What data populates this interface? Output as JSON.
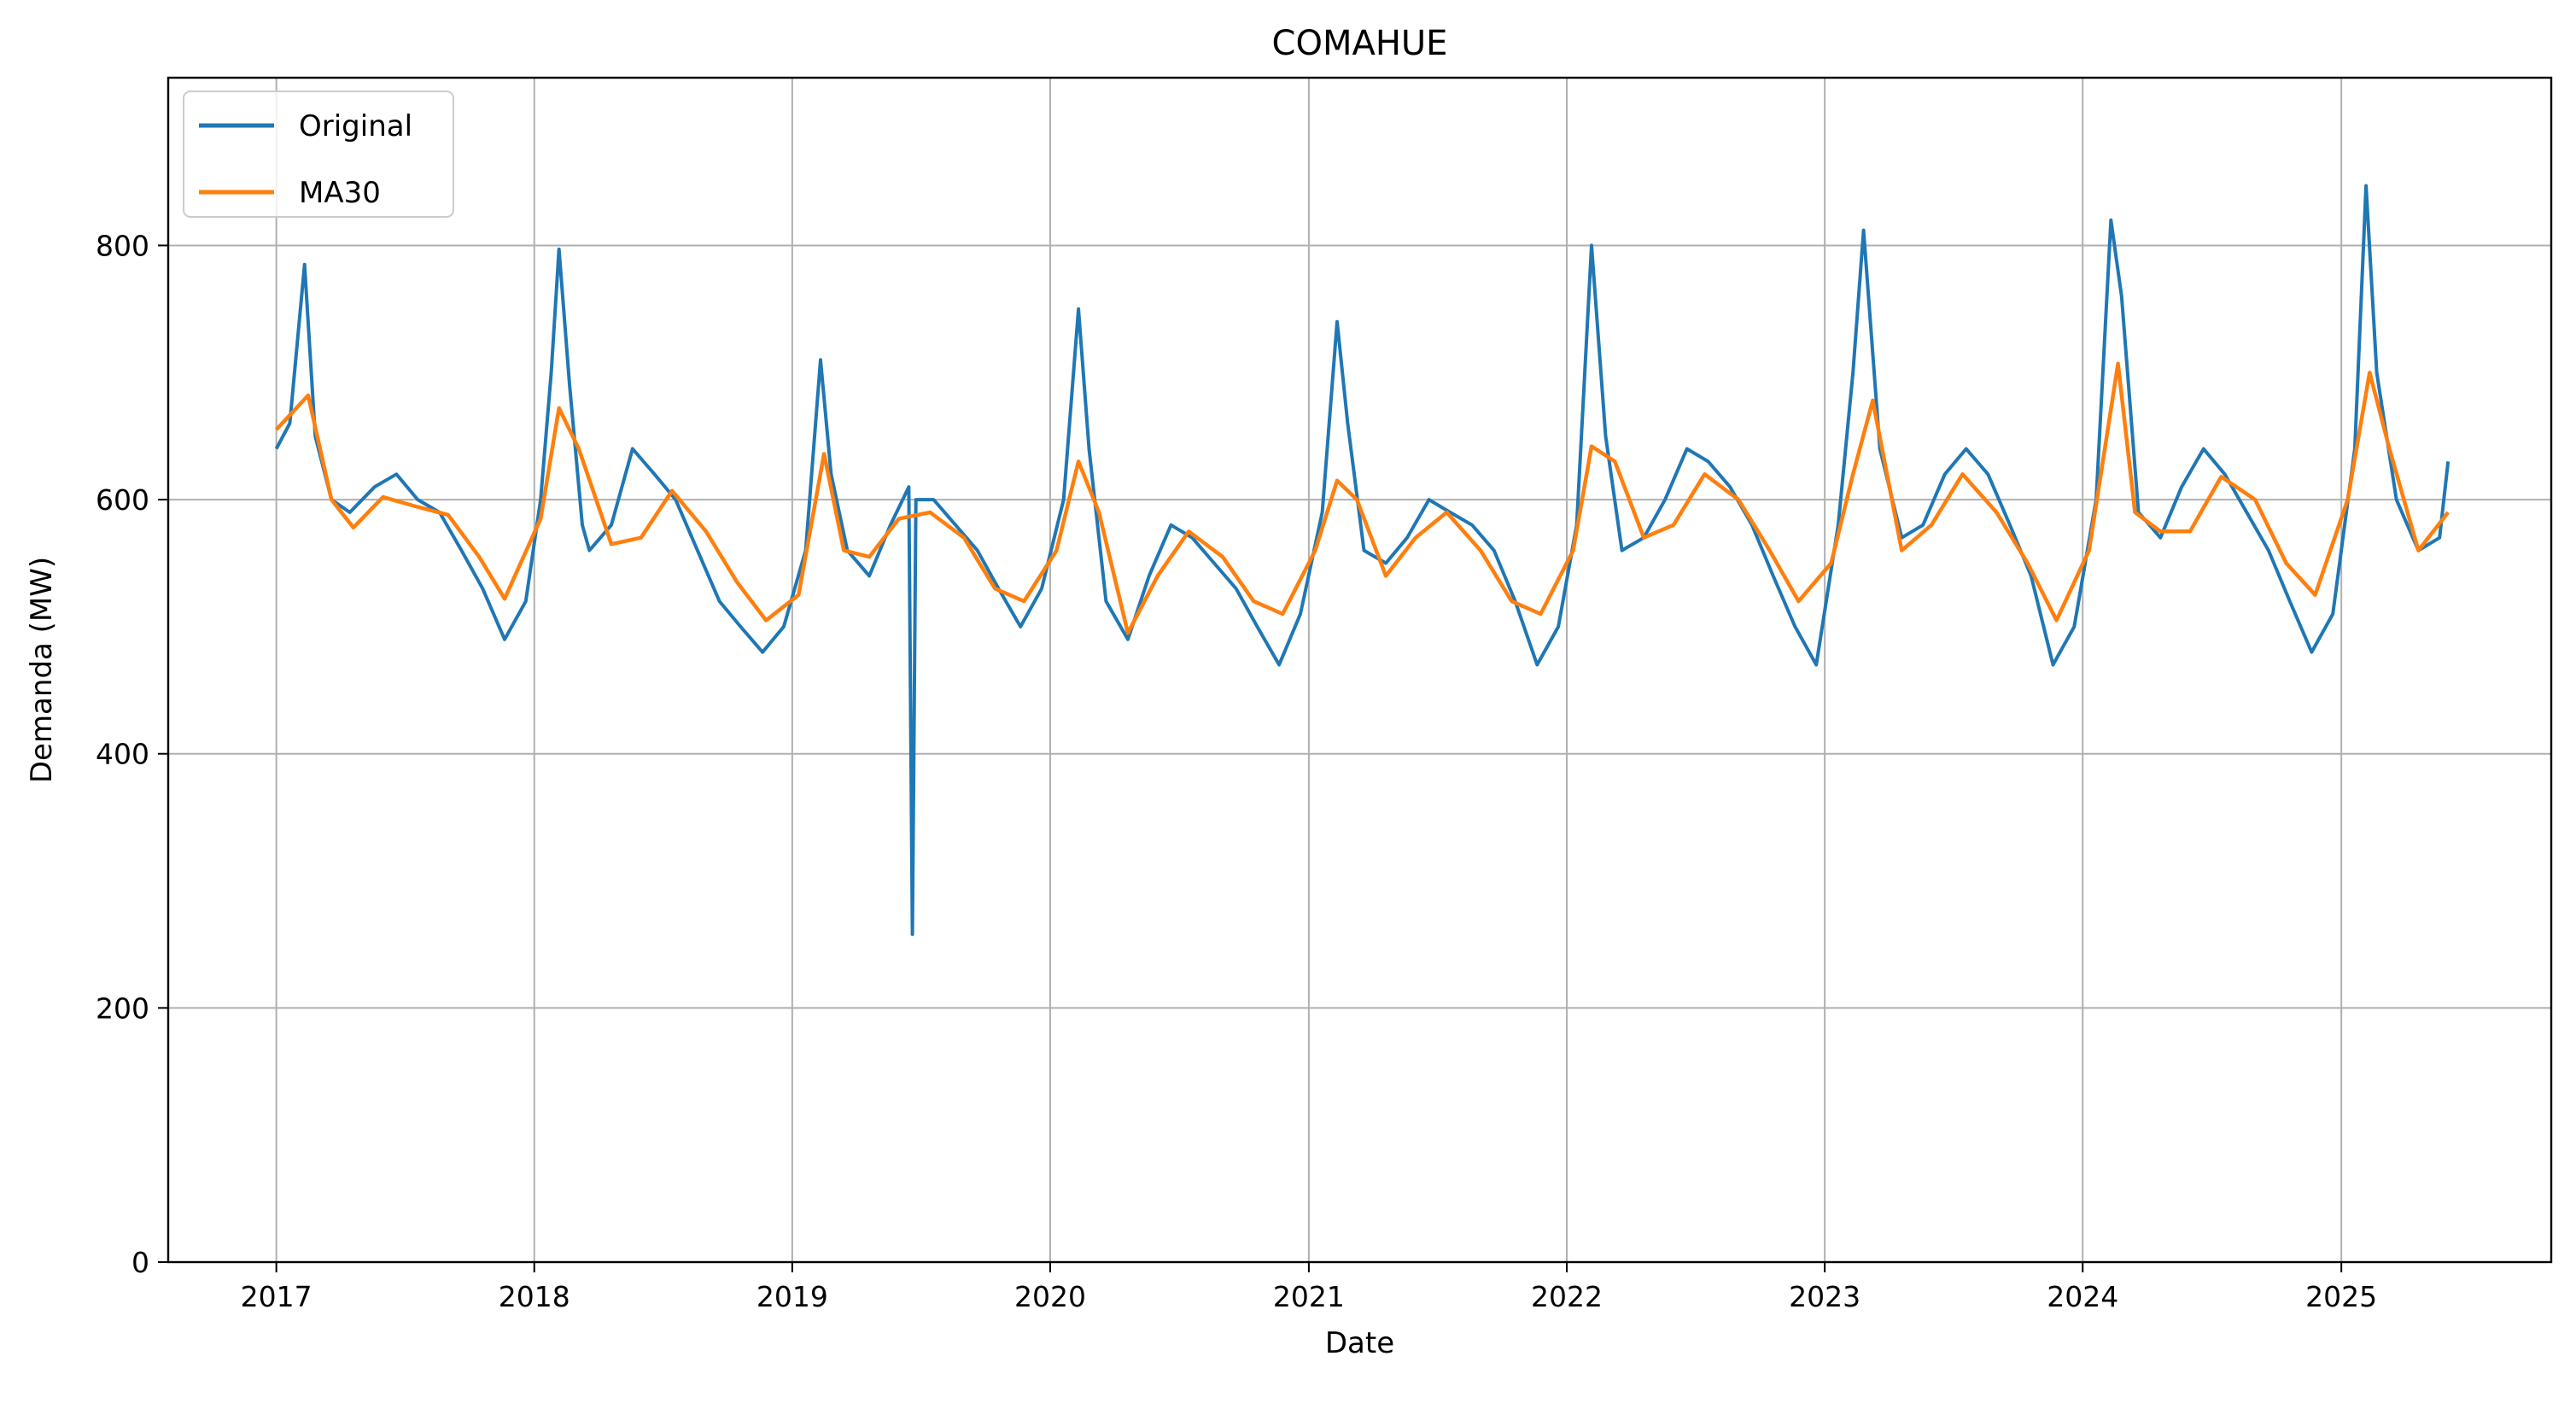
{
  "chart_data": {
    "type": "line",
    "title": "COMAHUE",
    "xlabel": "Date",
    "ylabel": "Demanda (MW)",
    "xlim": [
      "2016-08-01",
      "2025-10-25"
    ],
    "ylim": [
      0,
      932
    ],
    "x_ticks": [
      "2017-01-01",
      "2018-01-01",
      "2019-01-01",
      "2020-01-01",
      "2021-01-01",
      "2022-01-01",
      "2023-01-01",
      "2024-01-01",
      "2025-01-01"
    ],
    "x_tick_labels": [
      "2017",
      "2018",
      "2019",
      "2020",
      "2021",
      "2022",
      "2023",
      "2024",
      "2025"
    ],
    "y_ticks": [
      0,
      200,
      400,
      600,
      800
    ],
    "y_tick_labels": [
      "0",
      "200",
      "400",
      "600",
      "800"
    ],
    "grid": true,
    "legend_position": "top-left",
    "series": [
      {
        "name": "Original",
        "color": "#1f77b4",
        "style": "daily values (jagged), approx. range shown as points",
        "x": [
          "2017-01-01",
          "2017-01-20",
          "2017-02-10",
          "2017-02-25",
          "2017-03-20",
          "2017-04-15",
          "2017-05-20",
          "2017-06-20",
          "2017-07-20",
          "2017-08-20",
          "2017-09-20",
          "2017-10-20",
          "2017-11-20",
          "2017-12-20",
          "2018-01-10",
          "2018-01-25",
          "2018-02-05",
          "2018-02-20",
          "2018-03-10",
          "2018-03-20",
          "2018-04-20",
          "2018-05-20",
          "2018-06-20",
          "2018-07-20",
          "2018-08-20",
          "2018-09-20",
          "2018-10-20",
          "2018-11-20",
          "2018-12-20",
          "2019-01-20",
          "2019-02-10",
          "2019-02-25",
          "2019-03-20",
          "2019-04-20",
          "2019-05-20",
          "2019-06-15",
          "2019-06-20",
          "2019-06-25",
          "2019-07-20",
          "2019-08-20",
          "2019-09-20",
          "2019-10-20",
          "2019-11-20",
          "2019-12-20",
          "2020-01-20",
          "2020-02-10",
          "2020-02-25",
          "2020-03-20",
          "2020-04-20",
          "2020-05-20",
          "2020-06-20",
          "2020-07-20",
          "2020-08-20",
          "2020-09-20",
          "2020-10-20",
          "2020-11-20",
          "2020-12-20",
          "2021-01-20",
          "2021-02-10",
          "2021-02-25",
          "2021-03-20",
          "2021-04-20",
          "2021-05-20",
          "2021-06-20",
          "2021-07-20",
          "2021-08-20",
          "2021-09-20",
          "2021-10-20",
          "2021-11-20",
          "2021-12-20",
          "2022-01-15",
          "2022-02-05",
          "2022-02-25",
          "2022-03-20",
          "2022-04-20",
          "2022-05-20",
          "2022-06-20",
          "2022-07-20",
          "2022-08-20",
          "2022-09-20",
          "2022-10-20",
          "2022-11-20",
          "2022-12-20",
          "2023-01-20",
          "2023-02-10",
          "2023-02-25",
          "2023-03-20",
          "2023-04-20",
          "2023-05-20",
          "2023-06-20",
          "2023-07-20",
          "2023-08-20",
          "2023-09-20",
          "2023-10-20",
          "2023-11-20",
          "2023-12-20",
          "2024-01-20",
          "2024-02-10",
          "2024-02-25",
          "2024-03-20",
          "2024-04-20",
          "2024-05-20",
          "2024-06-20",
          "2024-07-20",
          "2024-08-20",
          "2024-09-20",
          "2024-10-20",
          "2024-11-20",
          "2024-12-20",
          "2025-01-20",
          "2025-02-05",
          "2025-02-20",
          "2025-03-20",
          "2025-04-20",
          "2025-05-20",
          "2025-06-01"
        ],
        "y": [
          640,
          660,
          785,
          650,
          600,
          590,
          610,
          620,
          600,
          590,
          560,
          530,
          490,
          520,
          600,
          700,
          797,
          690,
          580,
          560,
          580,
          640,
          620,
          600,
          560,
          520,
          500,
          480,
          500,
          560,
          710,
          620,
          560,
          540,
          580,
          610,
          258,
          600,
          600,
          580,
          560,
          530,
          500,
          530,
          600,
          750,
          640,
          520,
          490,
          540,
          580,
          570,
          550,
          530,
          500,
          470,
          510,
          590,
          740,
          660,
          560,
          550,
          570,
          600,
          590,
          580,
          560,
          520,
          470,
          500,
          580,
          800,
          650,
          560,
          570,
          600,
          640,
          630,
          610,
          580,
          540,
          500,
          470,
          580,
          700,
          812,
          640,
          570,
          580,
          620,
          640,
          620,
          580,
          540,
          470,
          500,
          600,
          820,
          760,
          590,
          570,
          610,
          640,
          620,
          590,
          560,
          520,
          480,
          510,
          640,
          847,
          700,
          600,
          560,
          570,
          630
        ]
      },
      {
        "name": "MA30",
        "color": "#ff7f0e",
        "x": [
          "2017-01-01",
          "2017-02-15",
          "2017-03-20",
          "2017-04-20",
          "2017-06-01",
          "2017-07-15",
          "2017-09-01",
          "2017-10-15",
          "2017-11-20",
          "2018-01-10",
          "2018-02-05",
          "2018-03-05",
          "2018-04-20",
          "2018-06-01",
          "2018-07-15",
          "2018-09-01",
          "2018-10-15",
          "2018-11-25",
          "2019-01-10",
          "2019-02-15",
          "2019-03-15",
          "2019-04-20",
          "2019-06-01",
          "2019-07-15",
          "2019-09-01",
          "2019-10-15",
          "2019-11-25",
          "2020-01-10",
          "2020-02-10",
          "2020-03-10",
          "2020-04-20",
          "2020-06-01",
          "2020-07-15",
          "2020-09-01",
          "2020-10-15",
          "2020-11-25",
          "2021-01-10",
          "2021-02-10",
          "2021-03-10",
          "2021-04-20",
          "2021-06-01",
          "2021-07-15",
          "2021-09-01",
          "2021-10-15",
          "2021-11-25",
          "2022-01-10",
          "2022-02-05",
          "2022-03-10",
          "2022-04-20",
          "2022-06-01",
          "2022-07-15",
          "2022-09-01",
          "2022-10-15",
          "2022-11-25",
          "2023-01-10",
          "2023-02-10",
          "2023-03-10",
          "2023-04-20",
          "2023-06-01",
          "2023-07-15",
          "2023-09-01",
          "2023-10-15",
          "2023-11-25",
          "2024-01-10",
          "2024-02-20",
          "2024-03-15",
          "2024-04-20",
          "2024-06-01",
          "2024-07-15",
          "2024-09-01",
          "2024-10-15",
          "2024-11-25",
          "2025-01-10",
          "2025-02-10",
          "2025-03-10",
          "2025-04-20",
          "2025-06-01"
        ],
        "y": [
          655,
          682,
          600,
          578,
          602,
          595,
          588,
          555,
          522,
          585,
          672,
          640,
          565,
          570,
          607,
          575,
          535,
          505,
          525,
          636,
          560,
          555,
          585,
          590,
          570,
          530,
          520,
          560,
          630,
          590,
          495,
          540,
          575,
          555,
          520,
          510,
          560,
          615,
          600,
          540,
          570,
          590,
          560,
          520,
          510,
          560,
          642,
          630,
          570,
          580,
          620,
          600,
          560,
          520,
          550,
          620,
          678,
          560,
          580,
          620,
          590,
          550,
          505,
          560,
          707,
          590,
          575,
          575,
          618,
          600,
          550,
          525,
          600,
          700,
          640,
          560,
          590
        ]
      }
    ]
  }
}
